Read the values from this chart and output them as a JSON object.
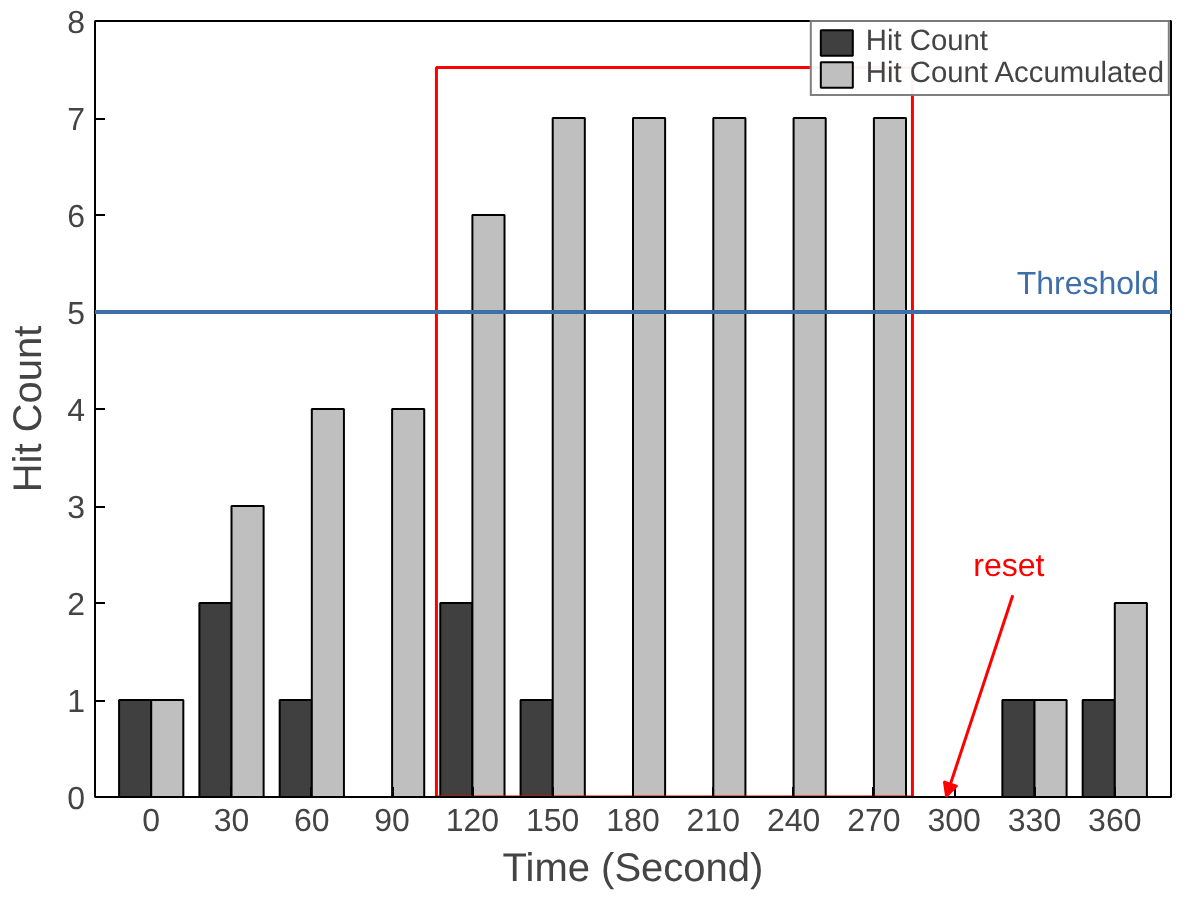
{
  "chart_data": {
    "type": "bar",
    "xlabel": "Time (Second)",
    "ylabel": "Hit Count",
    "categories": [
      "0",
      "30",
      "60",
      "90",
      "120",
      "150",
      "180",
      "210",
      "240",
      "270",
      "300",
      "330",
      "360"
    ],
    "series": [
      {
        "name": "Hit Count",
        "color": "#404040",
        "values": [
          1,
          2,
          1,
          null,
          2,
          1,
          null,
          null,
          null,
          null,
          null,
          1,
          1
        ]
      },
      {
        "name": "Hit Count Accumulated",
        "color": "#bfbfbf",
        "values": [
          1,
          3,
          4,
          4,
          6,
          7,
          7,
          7,
          7,
          7,
          null,
          1,
          2
        ]
      }
    ],
    "ylim": [
      0,
      8
    ],
    "yticks": [
      0,
      1,
      2,
      3,
      4,
      5,
      6,
      7,
      8
    ],
    "ref_lines": [
      {
        "axis": "y",
        "value": 5,
        "label": "Threshold",
        "color": "#3f6fa8"
      }
    ],
    "annotations": [
      "reset"
    ],
    "legend": "top right",
    "grid": false
  }
}
